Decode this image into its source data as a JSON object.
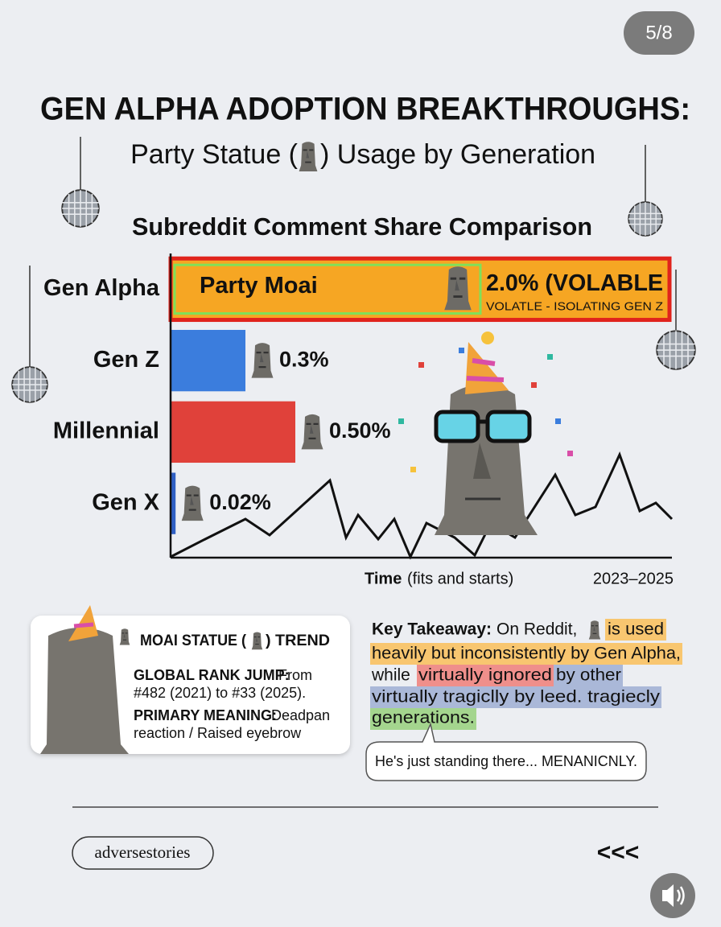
{
  "status": {
    "page": "5/8"
  },
  "header": {
    "title": "GEN ALPHA ADOPTION BREAKTHROUGHS:",
    "subtitle_start": "Party Statue (",
    "subtitle_end": ") Usage by Generation"
  },
  "chart_data": {
    "type": "bar",
    "orientation": "horizontal",
    "title": "Subreddit Comment Share Comparison",
    "categories": [
      "Gen Alpha",
      "Gen Z",
      "Millennial",
      "Gen X"
    ],
    "values": [
      2.0,
      0.3,
      0.5,
      0.02
    ],
    "value_labels": [
      "2.0% (VOLABLE",
      "0.3%",
      "0.50%",
      "0.02%"
    ],
    "colors": [
      "#f6a623",
      "#3b7ddd",
      "#e0413a",
      "#2f5fc4"
    ],
    "xlim": [
      0,
      2.0
    ],
    "annotations": [
      "Party Moai",
      "VOLATLE - ISOLATING GEN Z"
    ],
    "x_label": "Time",
    "x_label_note": "(fits and starts)",
    "x_range_label": "2023–2025"
  },
  "card": {
    "title_start": "MOAI STATUE (",
    "title_end": ") TREND",
    "items": [
      {
        "label": "GLOBAL RANK JUMP:",
        "text": "From",
        "text_line2": "#482 (2021) to #33 (2025)."
      },
      {
        "label": "PRIMARY MEANING:",
        "text": "Deadpan",
        "text_line2": "reaction / Raised eyebrow"
      }
    ]
  },
  "takeaway": {
    "label": "Key Takeaway:",
    "line1": "On Reddit,",
    "line1_highlight": "is used",
    "line2": "heavily but inconsistently by Gen Alpha,",
    "line3_start": "while",
    "line3_red": "virtually ignored",
    "line3_blue": "by other",
    "line4": "virtually tragiclly by leed. tragiecly",
    "line5": "generations."
  },
  "bubble": {
    "text": "He's just standing there... MENANICNLY."
  },
  "footer": {
    "brand": "adversestories",
    "nav": "<<<"
  }
}
